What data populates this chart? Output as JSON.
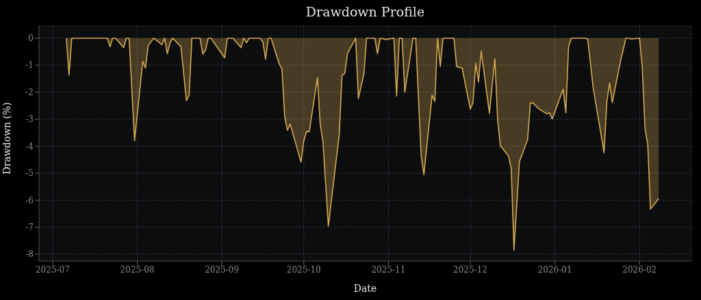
{
  "chart_data": {
    "type": "area",
    "title": "Drawdown Profile",
    "xlabel": "Date",
    "ylabel": "Drawdown (%)",
    "x": [
      "2025-07-06",
      "2025-07-07",
      "2025-07-08",
      "2025-07-21",
      "2025-07-22",
      "2025-07-23",
      "2025-07-24",
      "2025-07-27",
      "2025-07-28",
      "2025-07-29",
      "2025-07-31",
      "2025-08-03",
      "2025-08-04",
      "2025-08-05",
      "2025-08-07",
      "2025-08-10",
      "2025-08-11",
      "2025-08-12",
      "2025-08-13",
      "2025-08-14",
      "2025-08-17",
      "2025-08-19",
      "2025-08-20",
      "2025-08-21",
      "2025-08-24",
      "2025-08-25",
      "2025-08-26",
      "2025-08-27",
      "2025-08-28",
      "2025-09-02",
      "2025-09-03",
      "2025-09-05",
      "2025-09-08",
      "2025-09-09",
      "2025-09-10",
      "2025-09-11",
      "2025-09-15",
      "2025-09-16",
      "2025-09-17",
      "2025-09-18",
      "2025-09-19",
      "2025-09-22",
      "2025-09-23",
      "2025-09-24",
      "2025-09-25",
      "2025-09-26",
      "2025-09-30",
      "2025-10-01",
      "2025-10-02",
      "2025-10-03",
      "2025-10-06",
      "2025-10-07",
      "2025-10-08",
      "2025-10-10",
      "2025-10-14",
      "2025-10-15",
      "2025-10-16",
      "2025-10-17",
      "2025-10-20",
      "2025-10-21",
      "2025-10-23",
      "2025-10-24",
      "2025-10-27",
      "2025-10-28",
      "2025-10-29",
      "2025-10-31",
      "2025-11-03",
      "2025-11-04",
      "2025-11-05",
      "2025-11-06",
      "2025-11-07",
      "2025-11-10",
      "2025-11-11",
      "2025-11-13",
      "2025-11-14",
      "2025-11-17",
      "2025-11-18",
      "2025-11-19",
      "2025-11-20",
      "2025-11-21",
      "2025-11-25",
      "2025-11-26",
      "2025-11-28",
      "2025-12-01",
      "2025-12-02",
      "2025-12-03",
      "2025-12-04",
      "2025-12-05",
      "2025-12-08",
      "2025-12-10",
      "2025-12-11",
      "2025-12-12",
      "2025-12-15",
      "2025-12-16",
      "2025-12-17",
      "2025-12-19",
      "2025-12-22",
      "2025-12-23",
      "2025-12-24",
      "2025-12-26",
      "2025-12-29",
      "2025-12-30",
      "2025-12-31",
      "2026-01-04",
      "2026-01-05",
      "2026-01-06",
      "2026-01-07",
      "2026-01-12",
      "2026-01-13",
      "2026-01-15",
      "2026-01-19",
      "2026-01-20",
      "2026-01-21",
      "2026-01-22",
      "2026-01-25",
      "2026-01-27",
      "2026-01-28",
      "2026-01-29",
      "2026-02-01",
      "2026-02-02",
      "2026-02-03",
      "2026-02-04",
      "2026-02-05",
      "2026-02-08"
    ],
    "series": [
      {
        "color": "#d4a853",
        "values": [
          0,
          -1.37,
          0,
          0,
          -0.32,
          0,
          0,
          -0.35,
          0,
          0,
          -3.8,
          -0.86,
          -1.1,
          -0.27,
          0,
          -0.24,
          0,
          -0.57,
          -0.18,
          0,
          -0.32,
          -2.31,
          -2.11,
          0,
          0,
          -0.59,
          -0.44,
          0,
          0,
          -0.73,
          0,
          0,
          -0.35,
          0,
          -0.17,
          0,
          0,
          -0.14,
          -0.78,
          0,
          0,
          -0.95,
          -1.14,
          -2.91,
          -3.41,
          -3.18,
          -4.59,
          -3.79,
          -3.46,
          -3.46,
          -1.47,
          -3.18,
          -3.81,
          -6.96,
          -3.56,
          -1.38,
          -1.31,
          -0.57,
          0,
          -2.23,
          -1.33,
          0,
          0,
          -0.57,
          0,
          -0.05,
          0,
          -2.14,
          0,
          0,
          -2.0,
          0,
          0,
          -4.36,
          -5.06,
          -2.11,
          -2.34,
          0,
          -1.05,
          0,
          0,
          -1.05,
          -1.11,
          -2.63,
          -2.38,
          -0.93,
          -1.62,
          -0.48,
          -2.78,
          -0.76,
          -3.01,
          -3.98,
          -4.36,
          -4.83,
          -7.85,
          -4.57,
          -3.75,
          -2.4,
          -2.4,
          -2.61,
          -2.8,
          -2.76,
          -2.99,
          -1.89,
          -2.76,
          -0.31,
          0,
          0,
          -0.03,
          -1.83,
          -4.24,
          -2.38,
          -1.66,
          -2.38,
          -0.86,
          0,
          0,
          -0.03,
          0,
          -1.11,
          -3.35,
          -3.94,
          -6.33,
          -5.94
        ]
      }
    ],
    "xlim": [
      "2025-06-26",
      "2026-02-20"
    ],
    "xticks": [
      {
        "value": "2025-07-01",
        "label": "2025-07"
      },
      {
        "value": "2025-08-01",
        "label": "2025-08"
      },
      {
        "value": "2025-09-01",
        "label": "2025-09"
      },
      {
        "value": "2025-10-01",
        "label": "2025-10"
      },
      {
        "value": "2025-11-01",
        "label": "2025-11"
      },
      {
        "value": "2025-12-01",
        "label": "2025-12"
      },
      {
        "value": "2026-01-01",
        "label": "2026-01"
      },
      {
        "value": "2026-02-01",
        "label": "2026-02"
      }
    ],
    "ylim": [
      -8.25,
      0.45
    ],
    "yticks": [
      -8,
      -7,
      -6,
      -5,
      -4,
      -3,
      -2,
      -1,
      0
    ],
    "grid": true,
    "legend": false
  }
}
